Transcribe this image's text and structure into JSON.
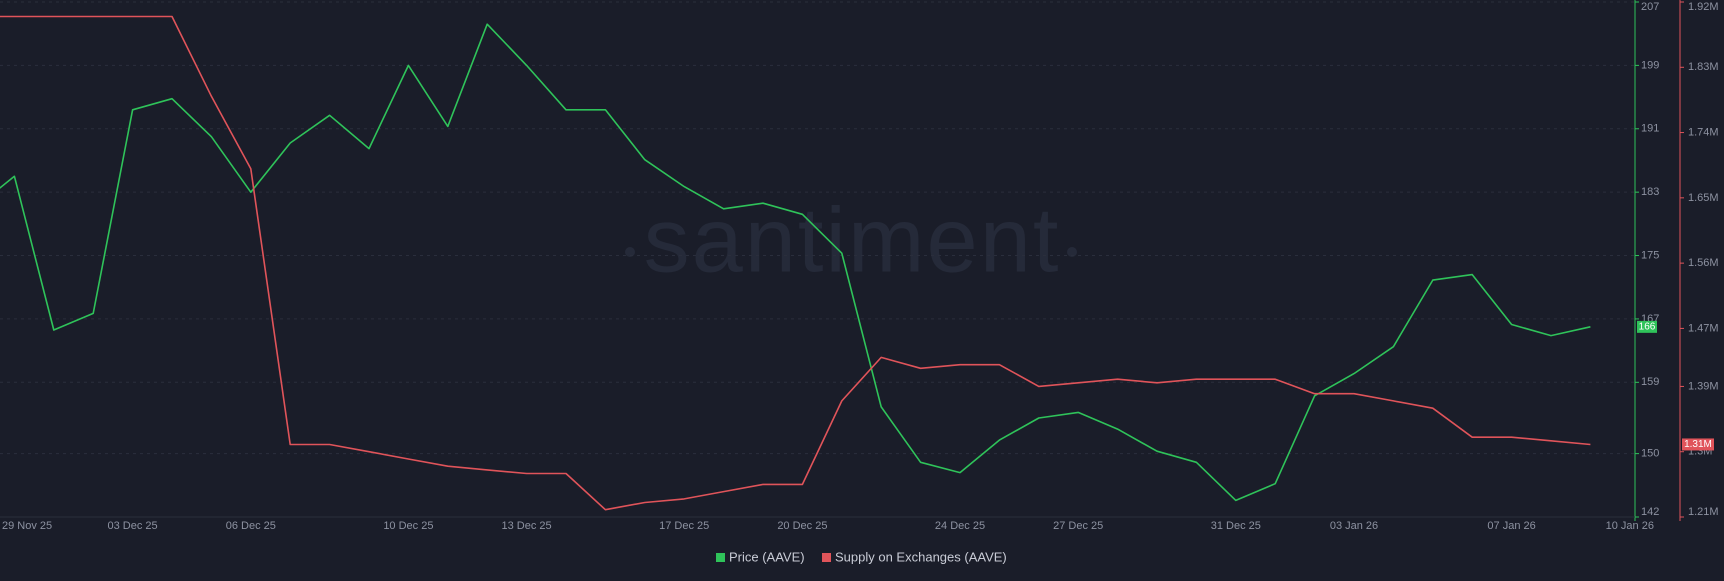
{
  "chart_data": {
    "type": "line",
    "watermark": "santiment",
    "x": [
      "29 Nov 25",
      "30 Nov 25",
      "01 Dec 25",
      "02 Dec 25",
      "03 Dec 25",
      "04 Dec 25",
      "05 Dec 25",
      "06 Dec 25",
      "07 Dec 25",
      "08 Dec 25",
      "09 Dec 25",
      "10 Dec 25",
      "11 Dec 25",
      "12 Dec 25",
      "13 Dec 25",
      "14 Dec 25",
      "15 Dec 25",
      "16 Dec 25",
      "17 Dec 25",
      "18 Dec 25",
      "19 Dec 25",
      "20 Dec 25",
      "21 Dec 25",
      "22 Dec 25",
      "23 Dec 25",
      "24 Dec 25",
      "25 Dec 25",
      "26 Dec 25",
      "27 Dec 25",
      "28 Dec 25",
      "29 Dec 25",
      "30 Dec 25",
      "31 Dec 25",
      "01 Jan 26",
      "02 Jan 26",
      "03 Jan 26",
      "04 Jan 26",
      "05 Jan 26",
      "06 Jan 26",
      "07 Jan 26",
      "08 Jan 26",
      "09 Jan 26"
    ],
    "xticks": [
      "29 Nov 25",
      "03 Dec 25",
      "06 Dec 25",
      "10 Dec 25",
      "13 Dec 25",
      "17 Dec 25",
      "20 Dec 25",
      "24 Dec 25",
      "27 Dec 25",
      "31 Dec 25",
      "03 Jan 26",
      "07 Jan 26",
      "10 Jan 26"
    ],
    "series": [
      {
        "name": "Price (AAVE)",
        "color": "#2fc35a",
        "axis": "y",
        "last_label": "166",
        "values": [
          181,
          185,
          165.6,
          167.7,
          193.4,
          194.8,
          190,
          183,
          189.2,
          192.7,
          188.5,
          199,
          191.3,
          204.2,
          199,
          193.4,
          193.4,
          187.1,
          183.7,
          180.9,
          181.6,
          180.2,
          175.3,
          155.9,
          148.9,
          147.6,
          151.7,
          154.5,
          155.2,
          153.1,
          150.3,
          148.9,
          144.1,
          146.2,
          157.3,
          160.1,
          163.5,
          171.9,
          172.6,
          166.3,
          164.9,
          166
        ]
      },
      {
        "name": "Supply on Exchanges (AAVE)",
        "color": "#e0545a",
        "axis": "y2",
        "last_label": "1.31M",
        "values": [
          1900000,
          1900000,
          1900000,
          1900000,
          1900000,
          1900000,
          1790000,
          1690000,
          1310000,
          1310000,
          1300000,
          1290000,
          1280000,
          1275000,
          1270000,
          1270000,
          1220000,
          1230000,
          1235000,
          1245000,
          1255000,
          1255000,
          1370000,
          1430000,
          1415000,
          1420000,
          1420000,
          1390000,
          1395000,
          1400000,
          1395000,
          1400000,
          1400000,
          1400000,
          1380000,
          1380000,
          1370000,
          1360000,
          1320000,
          1320000,
          1315000,
          1310000
        ]
      }
    ],
    "ylim": [
      142,
      207
    ],
    "yticks": [
      142,
      150,
      159,
      167,
      175,
      183,
      191,
      199,
      207
    ],
    "y2lim": [
      1210000,
      1920000
    ],
    "y2ticks": [
      {
        "value": 1210000,
        "label": "1.21M"
      },
      {
        "value": 1300000,
        "label": "1.3M"
      },
      {
        "value": 1390000,
        "label": "1.39M"
      },
      {
        "value": 1470000,
        "label": "1.47M"
      },
      {
        "value": 1560000,
        "label": "1.56M"
      },
      {
        "value": 1650000,
        "label": "1.65M"
      },
      {
        "value": 1740000,
        "label": "1.74M"
      },
      {
        "value": 1830000,
        "label": "1.83M"
      },
      {
        "value": 1920000,
        "label": "1.92M"
      }
    ],
    "grid": true
  }
}
